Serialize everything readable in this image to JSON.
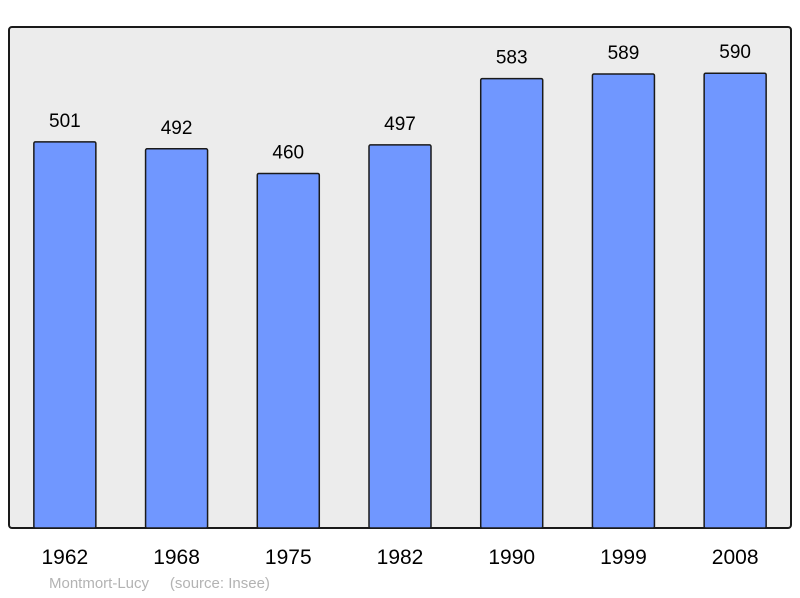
{
  "chart_data": {
    "type": "bar",
    "categories": [
      "1962",
      "1968",
      "1975",
      "1982",
      "1990",
      "1999",
      "2008"
    ],
    "values": [
      501,
      492,
      460,
      497,
      583,
      589,
      590
    ],
    "ylim": [
      0,
      650
    ],
    "grid": false,
    "bar_color": "#7097ff",
    "background_color": "#ececec"
  },
  "footer": {
    "place": "Montmort-Lucy",
    "source": "(source: Insee)"
  }
}
